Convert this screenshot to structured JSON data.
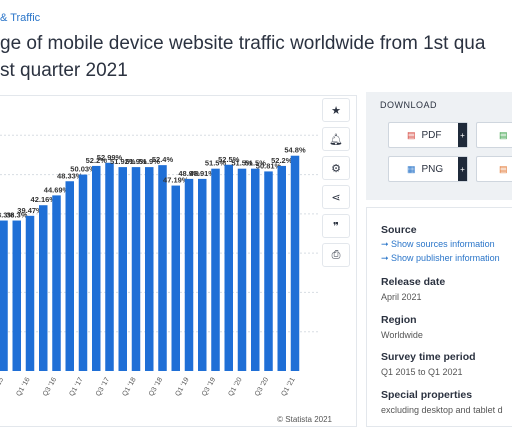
{
  "breadcrumb": "& Traffic",
  "title_line1": "ge of mobile device website traffic worldwide from 1st qua",
  "title_line2": "st quarter 2021",
  "toolbar": {
    "icons": [
      "star-icon",
      "bell-icon",
      "gear-icon",
      "share-icon",
      "quote-icon",
      "print-icon"
    ]
  },
  "download": {
    "title": "DOWNLOAD",
    "pdf_label": "PDF",
    "png_label": "PNG",
    "plus": "+"
  },
  "info": {
    "source_title": "Source",
    "source_link1": "➞ Show sources information",
    "source_link2": "➞ Show publisher information",
    "release_title": "Release date",
    "release_value": "April 2021",
    "region_title": "Region",
    "region_value": "Worldwide",
    "survey_title": "Survey time period",
    "survey_value": "Q1 2015 to Q1 2021",
    "special_title": "Special properties",
    "special_value": "excluding desktop and tablet d"
  },
  "copyright": "© Statista 2021",
  "chart_data": {
    "type": "bar",
    "color": "#1f6fd6",
    "ylim": [
      0,
      70
    ],
    "grid": true,
    "values": [
      35.5,
      38.3,
      38.3,
      39.5,
      42.2,
      44.7,
      48.3,
      50.0,
      52.2,
      53.0,
      51.9,
      51.9,
      51.9,
      52.4,
      47.2,
      48.9,
      48.9,
      51.5,
      52.5,
      51.5,
      51.5,
      50.8,
      52.2,
      54.8
    ],
    "labels": [
      "35%",
      "38.3%",
      "38.3%",
      "39.47%",
      "42.16%",
      "44.69%",
      "48.33%",
      "50.03%",
      "52.2%",
      "52.99%",
      "51.92%",
      "51.9%",
      "51.9%",
      "52.4%",
      "47.19%",
      "48.9%",
      "48.91%",
      "51.5%",
      "52.5%",
      "51.5%",
      "51.5%",
      "50.81%",
      "52.2%",
      "54.8%"
    ],
    "ticks": [
      "Q3 '15",
      "Q1 '16",
      "Q3 '16",
      "Q1 '17",
      "Q3 '17",
      "Q1 '18",
      "Q3 '18",
      "Q1 '19",
      "Q3 '19",
      "Q1 '20",
      "Q3 '20",
      "Q1 '21"
    ]
  }
}
